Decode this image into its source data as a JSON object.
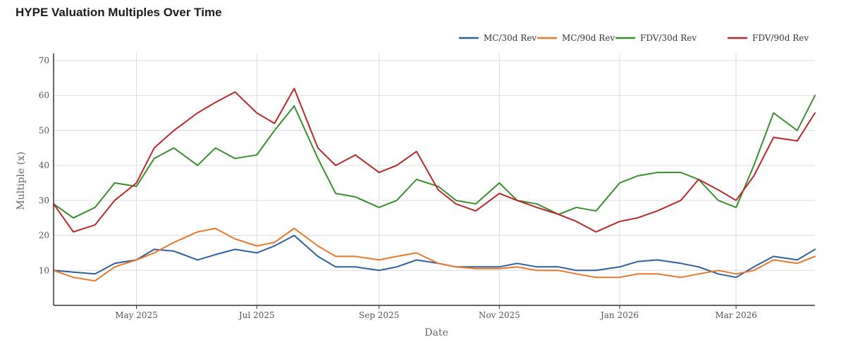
{
  "chart_data": {
    "type": "line",
    "title": "HYPE Valuation Multiples Over Time",
    "xlabel": "Date",
    "ylabel": "Multiple (x)",
    "x_range": [
      "2025-03-20",
      "2026-04-10"
    ],
    "ylim": [
      0,
      72
    ],
    "y_ticks": [
      10,
      20,
      30,
      40,
      50,
      60,
      70
    ],
    "x_ticks": [
      {
        "date": "2025-05-01",
        "label": "May 2025"
      },
      {
        "date": "2025-07-01",
        "label": "Jul 2025"
      },
      {
        "date": "2025-09-01",
        "label": "Sep 2025"
      },
      {
        "date": "2025-11-01",
        "label": "Nov 2025"
      },
      {
        "date": "2026-01-01",
        "label": "Jan 2026"
      },
      {
        "date": "2026-03-01",
        "label": "Mar 2026"
      }
    ],
    "grid": true,
    "legend_position": "top-right",
    "x": [
      "2025-03-20",
      "2025-03-30",
      "2025-04-10",
      "2025-04-20",
      "2025-05-01",
      "2025-05-10",
      "2025-05-20",
      "2025-06-01",
      "2025-06-10",
      "2025-06-20",
      "2025-07-01",
      "2025-07-10",
      "2025-07-20",
      "2025-08-01",
      "2025-08-10",
      "2025-08-20",
      "2025-09-01",
      "2025-09-10",
      "2025-09-20",
      "2025-10-01",
      "2025-10-10",
      "2025-10-20",
      "2025-11-01",
      "2025-11-10",
      "2025-11-20",
      "2025-12-01",
      "2025-12-10",
      "2025-12-20",
      "2026-01-01",
      "2026-01-10",
      "2026-01-20",
      "2026-02-01",
      "2026-02-10",
      "2026-02-20",
      "2026-03-01",
      "2026-03-10",
      "2026-03-20",
      "2026-04-01",
      "2026-04-10"
    ],
    "series": [
      {
        "name": "MC/30d Rev",
        "color": "#2e5f9e",
        "values": [
          10,
          9.5,
          9,
          12,
          13,
          16,
          15.5,
          13,
          14.5,
          16,
          15,
          17,
          20,
          14,
          11,
          11,
          10,
          11,
          13,
          12,
          11,
          11,
          11,
          12,
          11,
          11,
          10,
          10,
          11,
          12.5,
          13,
          12,
          11,
          9,
          8,
          11,
          14,
          13,
          16
        ]
      },
      {
        "name": "MC/90d Rev",
        "color": "#e8782a",
        "values": [
          10,
          8,
          7,
          11,
          13,
          15,
          18,
          21,
          22,
          19,
          17,
          18,
          22,
          17,
          14,
          14,
          13,
          14,
          15,
          12,
          11,
          10.5,
          10.5,
          11,
          10,
          10,
          9,
          8,
          8,
          9,
          9,
          8,
          9,
          10,
          9,
          10,
          13,
          12,
          14
        ]
      },
      {
        "name": "FDV/30d Rev",
        "color": "#3a8d2e",
        "values": [
          29,
          25,
          28,
          35,
          34,
          42,
          45,
          40,
          45,
          42,
          43,
          50,
          57,
          42,
          32,
          31,
          28,
          30,
          36,
          34,
          30,
          29,
          35,
          30,
          29,
          26,
          28,
          27,
          35,
          37,
          38,
          38,
          36,
          30,
          28,
          40,
          55,
          50,
          60
        ]
      },
      {
        "name": "FDV/90d Rev",
        "color": "#b8282a",
        "values": [
          29,
          21,
          23,
          30,
          35,
          45,
          50,
          55,
          58,
          61,
          55,
          52,
          62,
          45,
          40,
          43,
          38,
          40,
          44,
          33,
          29,
          27,
          32,
          30,
          28,
          26,
          24,
          21,
          24,
          25,
          27,
          30,
          36,
          33,
          30,
          37,
          48,
          47,
          55
        ]
      }
    ]
  }
}
